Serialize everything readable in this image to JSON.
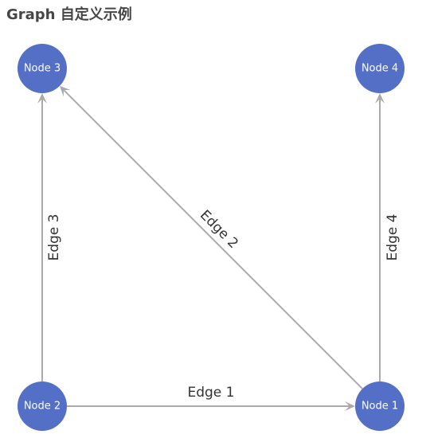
{
  "title": "Graph 自定义示例",
  "colors": {
    "node": "#5470c6",
    "edge": "#aaaaaa",
    "title": "#464646",
    "edge_label": "#333333",
    "node_label": "#ffffff"
  },
  "nodes": [
    {
      "id": "n1",
      "label": "Node 1"
    },
    {
      "id": "n2",
      "label": "Node 2"
    },
    {
      "id": "n3",
      "label": "Node 3"
    },
    {
      "id": "n4",
      "label": "Node 4"
    }
  ],
  "edges": [
    {
      "id": "e1",
      "label": "Edge 1",
      "source": "n2",
      "target": "n1"
    },
    {
      "id": "e2",
      "label": "Edge 2",
      "source": "n1",
      "target": "n3"
    },
    {
      "id": "e3",
      "label": "Edge 3",
      "source": "n2",
      "target": "n3"
    },
    {
      "id": "e4",
      "label": "Edge 4",
      "source": "n1",
      "target": "n4"
    }
  ]
}
